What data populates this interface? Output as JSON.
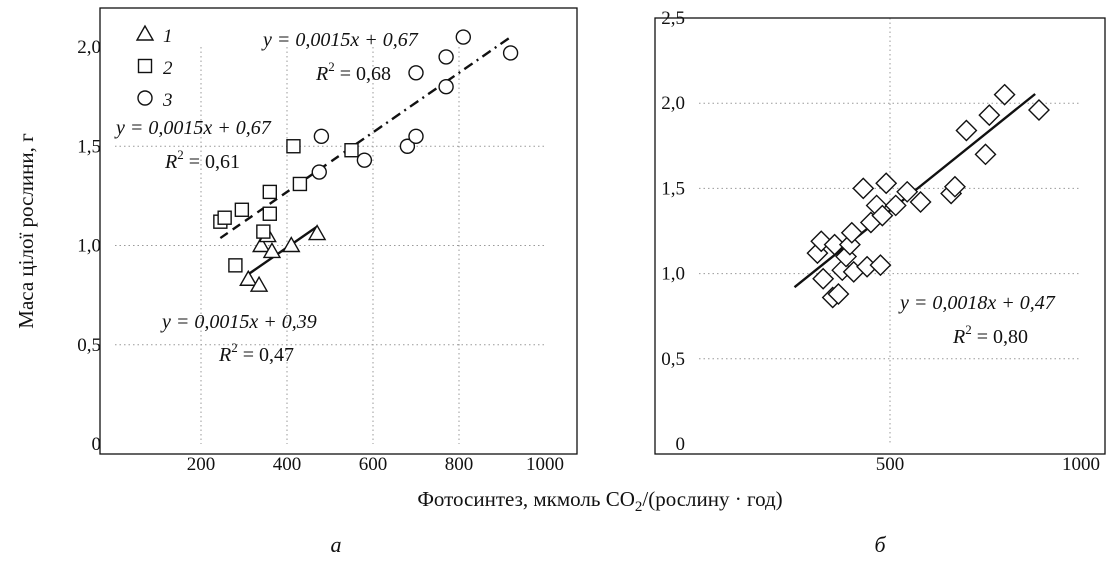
{
  "figure": {
    "shared_xlabel": "Фотосинтез, мкмоль CO₂/(рослину · год)",
    "ylabel": "Маса цілої рослини, г"
  },
  "chart_data": [
    {
      "type": "scatter",
      "panel_label": "а",
      "xlim": [
        0,
        1000
      ],
      "ylim": [
        0,
        2.0
      ],
      "xticks": [
        200,
        400,
        600,
        800,
        1000
      ],
      "xtick_labels": [
        "200",
        "400",
        "600",
        "800",
        "1000"
      ],
      "yticks": [
        0,
        0.5,
        1.0,
        1.5,
        2.0
      ],
      "ytick_labels": [
        "0",
        "0,5",
        "1,0",
        "1,5",
        "2,0"
      ],
      "grid": true,
      "legend_position": "top-left",
      "series": [
        {
          "name": "1",
          "marker": "triangle",
          "points": [
            [
              310,
              0.83
            ],
            [
              335,
              0.8
            ],
            [
              340,
              1.0
            ],
            [
              355,
              1.05
            ],
            [
              365,
              0.97
            ],
            [
              410,
              1.0
            ],
            [
              470,
              1.06
            ]
          ],
          "fit": {
            "slope": 0.0015,
            "intercept": 0.39,
            "x_range": [
              310,
              470
            ],
            "style": "solid",
            "equation": "y = 0,0015x + 0,39",
            "r2_label": "R² = 0,47"
          }
        },
        {
          "name": "2",
          "marker": "square",
          "points": [
            [
              245,
              1.12
            ],
            [
              255,
              1.14
            ],
            [
              280,
              0.9
            ],
            [
              295,
              1.18
            ],
            [
              345,
              1.07
            ],
            [
              360,
              1.27
            ],
            [
              360,
              1.16
            ],
            [
              430,
              1.31
            ],
            [
              415,
              1.5
            ],
            [
              550,
              1.48
            ]
          ],
          "fit": {
            "slope": 0.0015,
            "intercept": 0.67,
            "x_range": [
              245,
              560
            ],
            "style": "dashed",
            "equation": "y = 0,0015x + 0,67",
            "r2_label": "R² = 0,61"
          }
        },
        {
          "name": "3",
          "marker": "circle",
          "points": [
            [
              475,
              1.37
            ],
            [
              480,
              1.55
            ],
            [
              580,
              1.43
            ],
            [
              680,
              1.5
            ],
            [
              700,
              1.55
            ],
            [
              700,
              1.87
            ],
            [
              770,
              1.8
            ],
            [
              770,
              1.95
            ],
            [
              810,
              2.05
            ],
            [
              920,
              1.97
            ]
          ],
          "fit": {
            "slope": 0.0015,
            "intercept": 0.67,
            "x_range": [
              560,
              920
            ],
            "style": "dashdot",
            "equation": "y = 0,0015x + 0,67",
            "r2_label": "R² = 0,68"
          }
        }
      ]
    },
    {
      "type": "scatter",
      "panel_label": "б",
      "xlim": [
        0,
        1000
      ],
      "ylim": [
        0,
        2.5
      ],
      "xticks": [
        500,
        1000
      ],
      "xtick_labels": [
        "500",
        "1000"
      ],
      "yticks": [
        0,
        0.5,
        1.0,
        1.5,
        2.0,
        2.5
      ],
      "ytick_labels": [
        "0",
        "0,5",
        "1,0",
        "1,5",
        "2,0",
        "2,5"
      ],
      "grid": true,
      "series": [
        {
          "marker": "diamond",
          "points": [
            [
              310,
              1.12
            ],
            [
              320,
              1.19
            ],
            [
              325,
              0.97
            ],
            [
              350,
              0.86
            ],
            [
              355,
              1.17
            ],
            [
              365,
              0.88
            ],
            [
              375,
              1.02
            ],
            [
              385,
              1.1
            ],
            [
              395,
              1.17
            ],
            [
              400,
              1.24
            ],
            [
              405,
              1.01
            ],
            [
              430,
              1.5
            ],
            [
              440,
              1.04
            ],
            [
              450,
              1.3
            ],
            [
              465,
              1.4
            ],
            [
              475,
              1.05
            ],
            [
              480,
              1.34
            ],
            [
              490,
              1.53
            ],
            [
              515,
              1.4
            ],
            [
              545,
              1.48
            ],
            [
              580,
              1.42
            ],
            [
              660,
              1.47
            ],
            [
              670,
              1.51
            ],
            [
              700,
              1.84
            ],
            [
              750,
              1.7
            ],
            [
              760,
              1.93
            ],
            [
              800,
              2.05
            ],
            [
              890,
              1.96
            ]
          ],
          "fit": {
            "slope": 0.0018,
            "intercept": 0.47,
            "x_range": [
              250,
              880
            ],
            "style": "solid",
            "equation": "y = 0,0018x + 0,47",
            "r2_label": "R² = 0,80"
          }
        }
      ]
    }
  ]
}
